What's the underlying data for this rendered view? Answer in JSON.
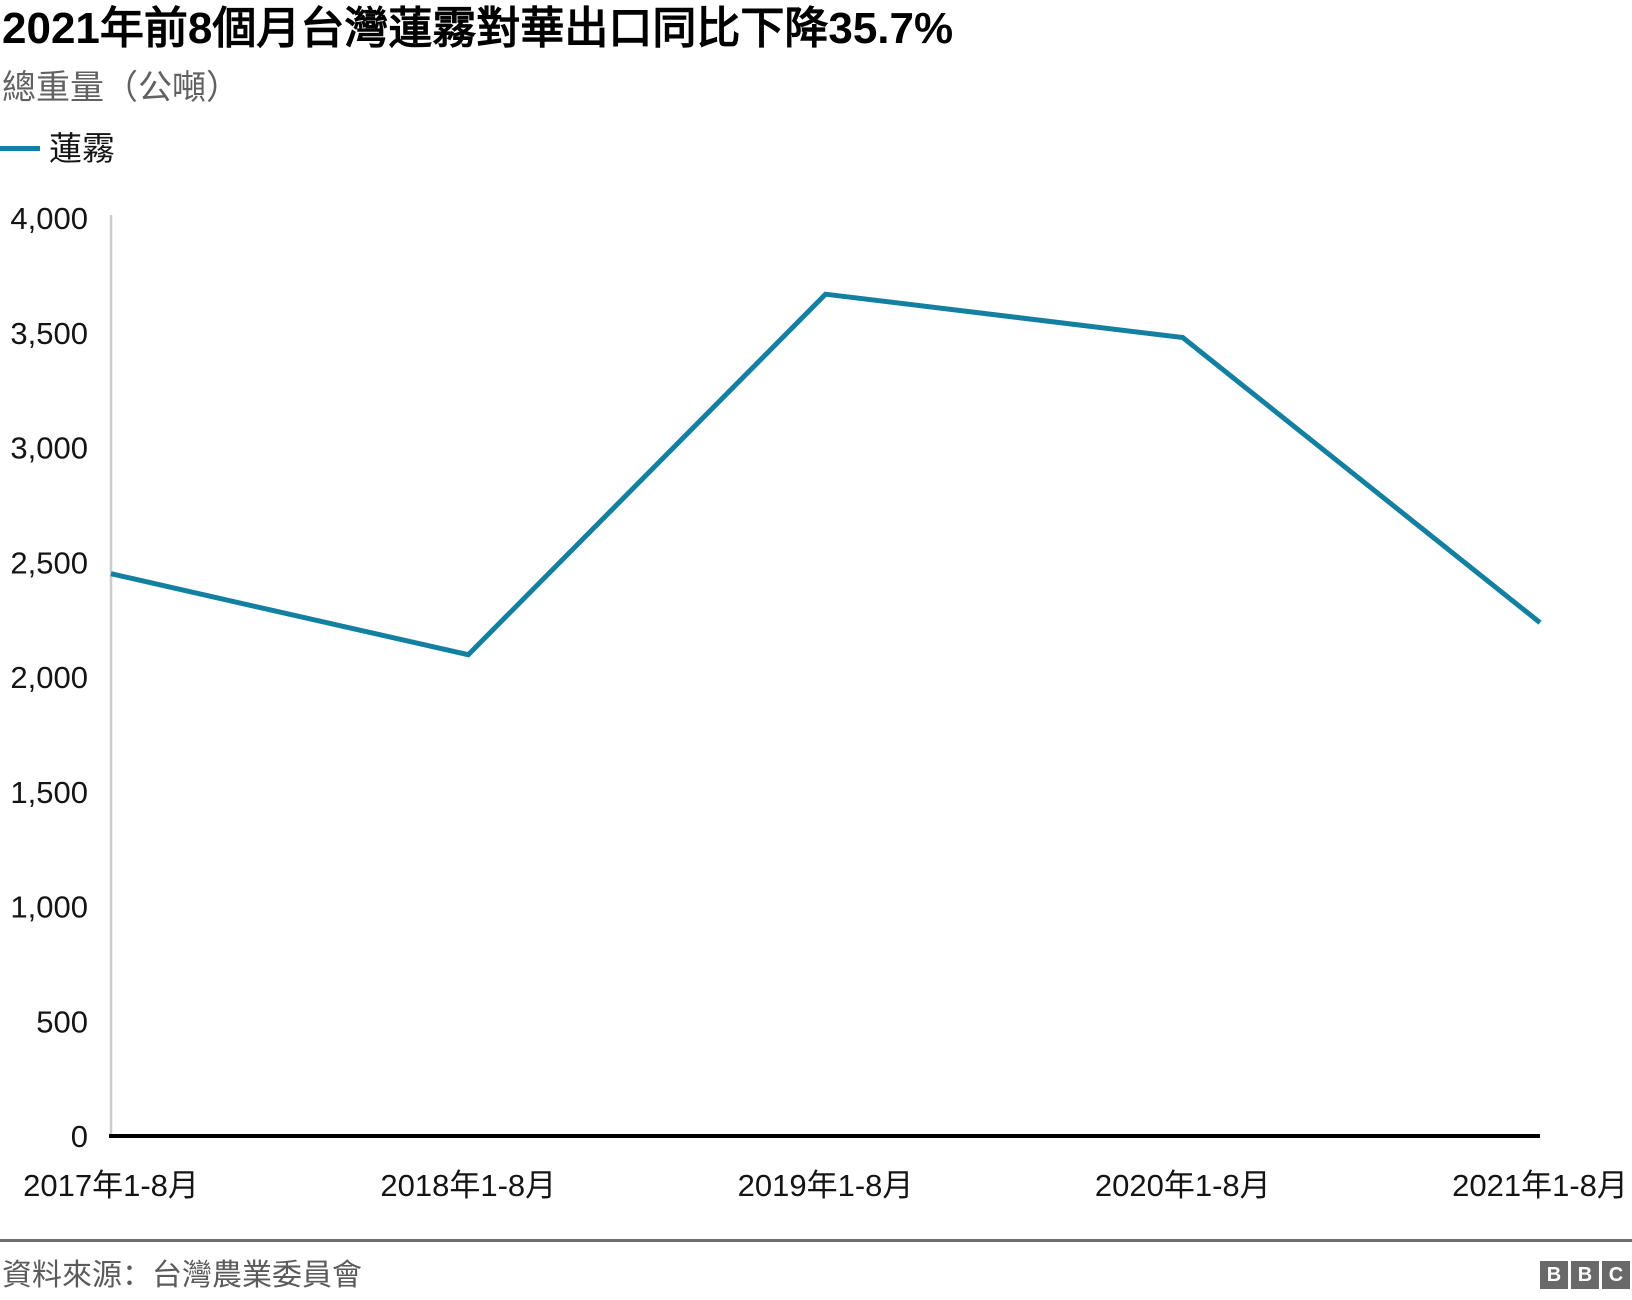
{
  "header": {
    "title": "2021年前8個月台灣蓮霧對華出口同比下降35.7%",
    "subtitle": "總重量（公噸）"
  },
  "legend": {
    "position": "top-left",
    "items": [
      {
        "label": "蓮霧",
        "color": "#1380A1"
      }
    ]
  },
  "chart_data": {
    "type": "line",
    "title": "2021年前8個月台灣蓮霧對華出口同比下降35.7%",
    "subtitle": "總重量（公噸）",
    "categories": [
      "2017年1-8月",
      "2018年1-8月",
      "2019年1-8月",
      "2020年1-8月",
      "2021年1-8月"
    ],
    "series": [
      {
        "name": "蓮霧",
        "values": [
          2450,
          2097,
          3668,
          3479,
          2237
        ],
        "color": "#1380A1"
      }
    ],
    "xlabel": "",
    "ylabel": "總重量（公噸）",
    "ylim": [
      0,
      4000
    ],
    "y_tick_step": 500,
    "y_tick_labels": [
      "0",
      "500",
      "1,000",
      "1,500",
      "2,000",
      "2,500",
      "3,000",
      "3,500",
      "4,000"
    ],
    "grid": false,
    "legend_position": "top-left",
    "axis_colors": {
      "y_axis_line": "#cccccc",
      "x_axis_line": "#000000",
      "tick_text": "#141414"
    }
  },
  "footer": {
    "source": "資料來源：台灣農業委員會",
    "logo_letters": [
      "B",
      "B",
      "C"
    ]
  }
}
